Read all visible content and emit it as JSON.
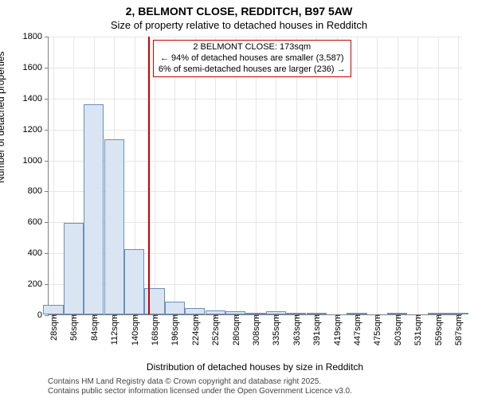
{
  "title_line1": "2, BELMONT CLOSE, REDDITCH, B97 5AW",
  "title_line2": "Size of property relative to detached houses in Redditch",
  "y_axis_label": "Number of detached properties",
  "x_axis_label": "Distribution of detached houses by size in Redditch",
  "footer_line1": "Contains HM Land Registry data © Crown copyright and database right 2025.",
  "footer_line2": "Contains public sector information licensed under the Open Government Licence v3.0.",
  "chart": {
    "type": "histogram",
    "plot_background": "#ffffff",
    "grid_color": "#e6e6e6",
    "axis_color": "#808080",
    "bar_fill": "#d9e5f2",
    "bar_stroke": "#6b8fbb",
    "marker_color": "#cc0000",
    "anno_border": "#cc0000",
    "label_color": "#000000",
    "label_fontsize": 11,
    "title_fontsize": 14,
    "y": {
      "min": 0,
      "max": 1800,
      "ticks": [
        0,
        200,
        400,
        600,
        800,
        1000,
        1200,
        1400,
        1600,
        1800
      ]
    },
    "x": {
      "ticks": [
        "28sqm",
        "56sqm",
        "84sqm",
        "112sqm",
        "140sqm",
        "168sqm",
        "196sqm",
        "224sqm",
        "252sqm",
        "280sqm",
        "308sqm",
        "335sqm",
        "363sqm",
        "391sqm",
        "419sqm",
        "447sqm",
        "475sqm",
        "503sqm",
        "531sqm",
        "559sqm",
        "587sqm"
      ]
    },
    "bars": [
      60,
      590,
      1360,
      1130,
      420,
      170,
      80,
      40,
      25,
      20,
      5,
      20,
      5,
      5,
      0,
      5,
      0,
      5,
      0,
      5,
      5
    ],
    "marker": {
      "bin_index_after": 5,
      "fraction_into_gap": 0.18
    },
    "annotation": {
      "line1": "2 BELMONT CLOSE: 173sqm",
      "line2": "← 94% of detached houses are smaller (3,587)",
      "line3": "6% of semi-detached houses are larger (236) →"
    }
  }
}
